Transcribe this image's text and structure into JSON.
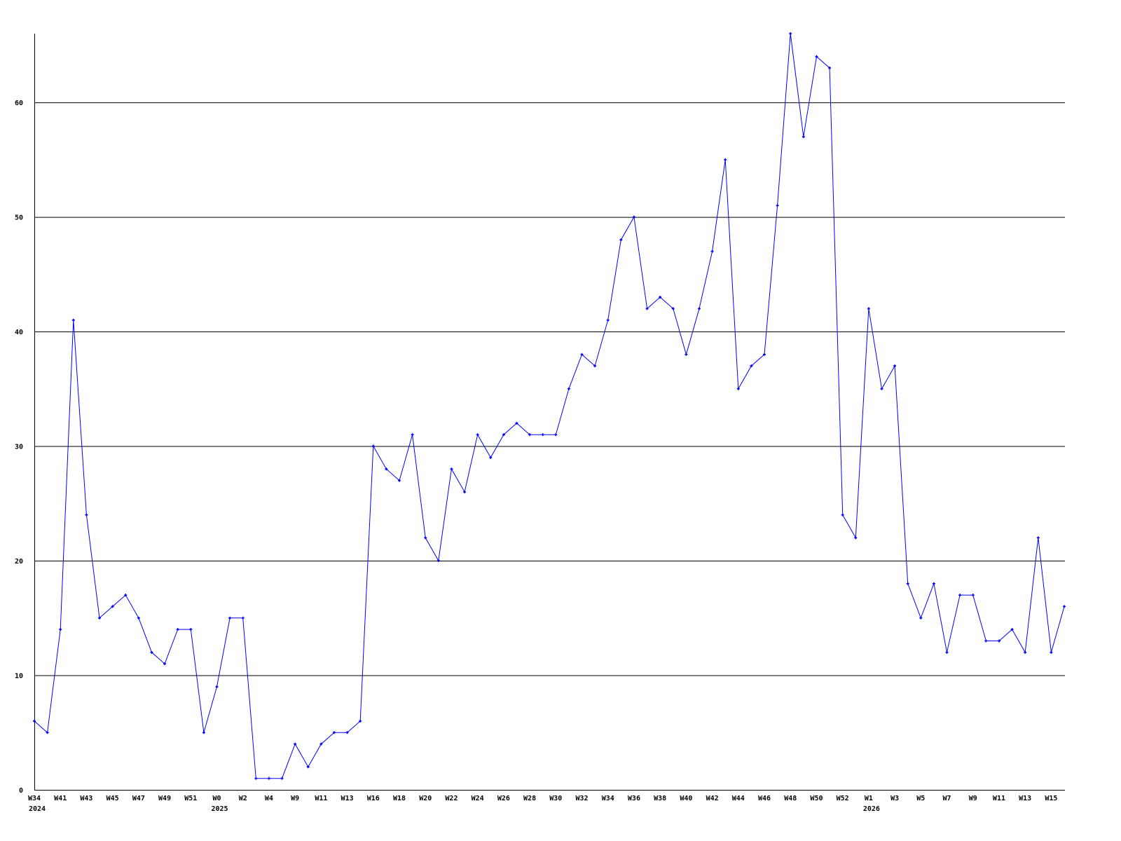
{
  "chart_data": {
    "type": "line",
    "title": "",
    "xlabel": "",
    "ylabel": "",
    "ylim": [
      0,
      66
    ],
    "yticks": [
      0,
      10,
      20,
      30,
      40,
      50,
      60
    ],
    "grid": true,
    "colors": {
      "line": "#0000ff",
      "grid": "#000000"
    },
    "x_tick_labels": [
      "W34",
      "W41",
      "W43",
      "W45",
      "W47",
      "W49",
      "W51",
      "W0",
      "W2",
      "W4",
      "W9",
      "W11",
      "W13",
      "W16",
      "W18",
      "W20",
      "W22",
      "W24",
      "W26",
      "W28",
      "W30",
      "W32",
      "W34",
      "W36",
      "W38",
      "W40",
      "W42",
      "W44",
      "W46",
      "W48",
      "W50",
      "W52",
      "W1",
      "W3",
      "W5",
      "W7",
      "W9",
      "W11",
      "W13",
      "W15"
    ],
    "year_labels": [
      {
        "label": "2024",
        "tick_index": 0
      },
      {
        "label": "2025",
        "tick_index": 7
      },
      {
        "label": "2026",
        "tick_index": 32
      }
    ],
    "values": [
      6,
      5,
      14,
      41,
      24,
      15,
      16,
      17,
      15,
      12,
      11,
      14,
      14,
      5,
      9,
      15,
      15,
      1,
      1,
      1,
      4,
      2,
      4,
      5,
      5,
      6,
      30,
      28,
      27,
      31,
      22,
      20,
      28,
      26,
      31,
      29,
      31,
      32,
      31,
      31,
      31,
      35,
      38,
      37,
      41,
      48,
      50,
      42,
      43,
      42,
      38,
      42,
      47,
      55,
      35,
      37,
      38,
      51,
      66,
      57,
      64,
      63,
      24,
      22,
      42,
      35,
      37,
      18,
      15,
      18,
      12,
      17,
      17,
      13,
      13,
      14,
      12,
      22,
      12,
      16
    ]
  }
}
